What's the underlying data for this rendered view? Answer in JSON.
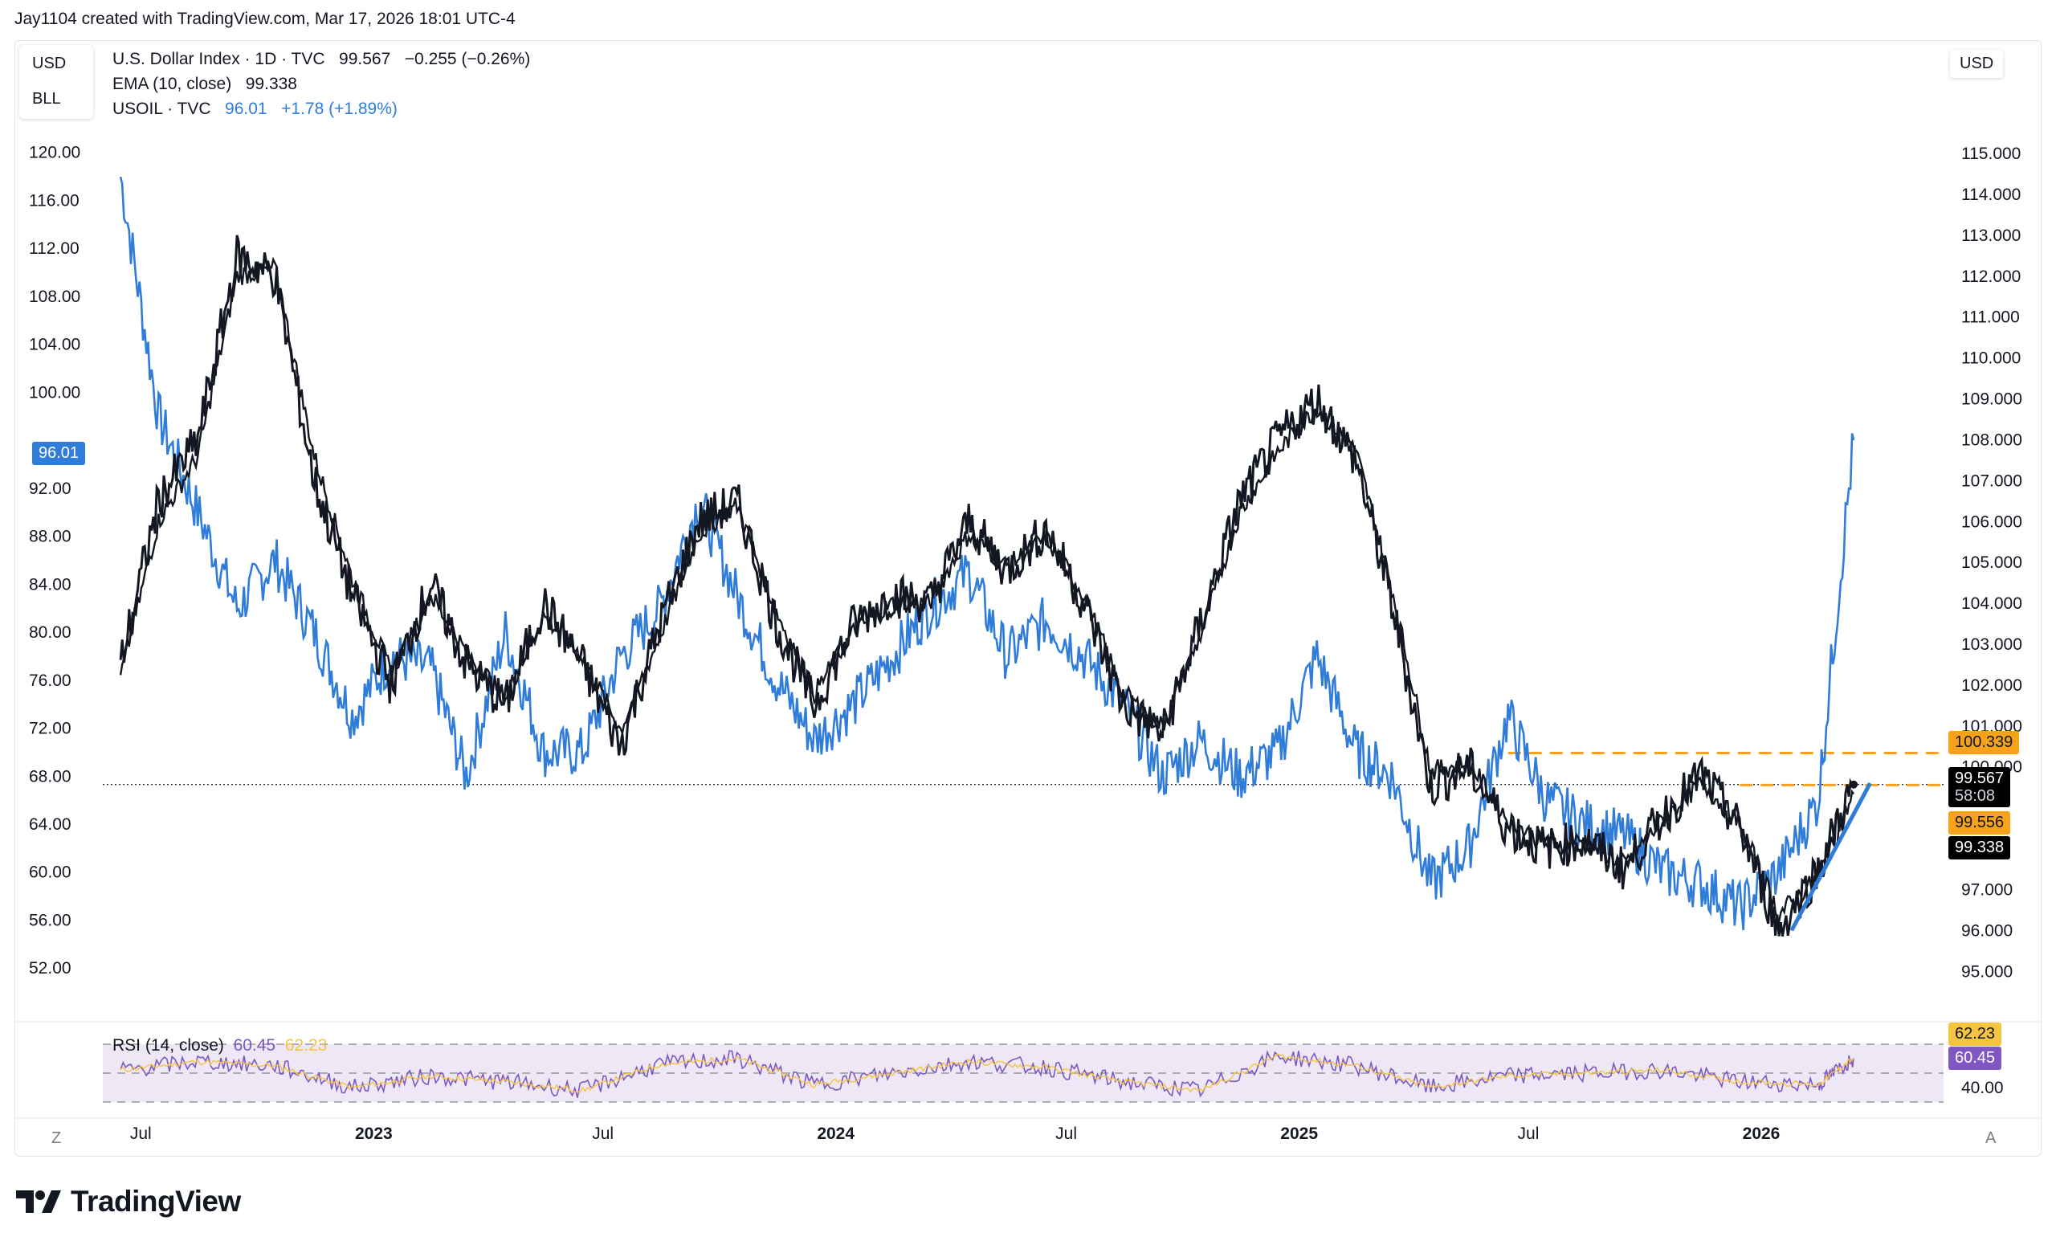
{
  "header": {
    "credit": "Jay1104 created with TradingView.com, Mar 17, 2026 18:01 UTC-4"
  },
  "left_scale": {
    "units": [
      "USD",
      "BLL"
    ],
    "ticks": [
      "120.00",
      "116.00",
      "112.00",
      "108.00",
      "104.00",
      "100.00",
      "92.00",
      "88.00",
      "84.00",
      "80.00",
      "76.00",
      "72.00",
      "68.00",
      "64.00",
      "60.00",
      "56.00",
      "52.00"
    ],
    "current_label": "96.01"
  },
  "right_scale": {
    "unit": "USD",
    "ticks": [
      "115.000",
      "114.000",
      "113.000",
      "112.000",
      "111.000",
      "110.000",
      "109.000",
      "108.000",
      "107.000",
      "106.000",
      "105.000",
      "104.000",
      "103.000",
      "102.000",
      "101.000",
      "100.000",
      "97.000",
      "96.000",
      "95.000"
    ],
    "tags": {
      "resistance": "100.339",
      "price": "99.567",
      "countdown": "58:08",
      "support": "99.556",
      "ema": "99.338"
    }
  },
  "legend": {
    "line1": {
      "name": "U.S. Dollar Index · 1D · TVC",
      "value": "99.567",
      "change": "−0.255 (−0.26%)"
    },
    "line2": {
      "name": "EMA (10, close)",
      "value": "99.338"
    },
    "line3": {
      "name": "USOIL · TVC",
      "value": "96.01",
      "change": "+1.78 (+1.89%)"
    }
  },
  "rsi": {
    "label": "RSI (14, close)",
    "value": "60.45",
    "ma_value": "62.23",
    "ticks": [
      "40.00"
    ],
    "tags": [
      "62.23",
      "60.45"
    ]
  },
  "time_axis": {
    "labels": [
      "Jul",
      "2023",
      "Jul",
      "2024",
      "Jul",
      "2025",
      "Jul",
      "2026"
    ],
    "left_button": "Z",
    "right_button": "A"
  },
  "brand": {
    "name": "TradingView"
  },
  "colors": {
    "dxy": "#131722",
    "oil": "#2f7cd9",
    "resistance": "#f7a21b",
    "rsi_line": "#7e57c2",
    "rsi_ma": "#f5c542",
    "rsi_band": "#ede7f6"
  },
  "chart_data": [
    {
      "type": "line",
      "title": "U.S. Dollar Index · 1D · TVC",
      "series": [
        {
          "name": "U.S. Dollar Index",
          "x": [
            "2022-06",
            "2022-07",
            "2022-08",
            "2022-09",
            "2022-10",
            "2022-11",
            "2022-12",
            "2023-01",
            "2023-02",
            "2023-03",
            "2023-04",
            "2023-05",
            "2023-06",
            "2023-07",
            "2023-08",
            "2023-09",
            "2023-10",
            "2023-11",
            "2023-12",
            "2024-01",
            "2024-02",
            "2024-03",
            "2024-04",
            "2024-05",
            "2024-06",
            "2024-07",
            "2024-08",
            "2024-09",
            "2024-10",
            "2024-11",
            "2024-12",
            "2025-01",
            "2025-02",
            "2025-03",
            "2025-04",
            "2025-05",
            "2025-06",
            "2025-07",
            "2025-08",
            "2025-09",
            "2025-10",
            "2025-11",
            "2025-12",
            "2026-01",
            "2026-02",
            "2026-03"
          ],
          "values": [
            102.5,
            106.5,
            108.0,
            112.5,
            112.0,
            107.0,
            104.2,
            102.0,
            104.5,
            102.5,
            101.5,
            104.0,
            102.5,
            100.5,
            103.5,
            106.0,
            106.5,
            103.5,
            101.5,
            103.5,
            104.2,
            104.0,
            106.0,
            104.8,
            105.8,
            104.0,
            101.5,
            100.8,
            103.5,
            106.5,
            108.0,
            109.0,
            107.5,
            104.0,
            99.5,
            100.0,
            98.5,
            98.0,
            98.2,
            97.5,
            98.8,
            99.8,
            98.5,
            96.0,
            97.5,
            99.567
          ]
        },
        {
          "name": "EMA (10, close)",
          "x": [
            "2022-06",
            "2022-07",
            "2022-08",
            "2022-09",
            "2022-10",
            "2022-11",
            "2022-12",
            "2023-01",
            "2023-02",
            "2023-03",
            "2023-04",
            "2023-05",
            "2023-06",
            "2023-07",
            "2023-08",
            "2023-09",
            "2023-10",
            "2023-11",
            "2023-12",
            "2024-01",
            "2024-02",
            "2024-03",
            "2024-04",
            "2024-05",
            "2024-06",
            "2024-07",
            "2024-08",
            "2024-09",
            "2024-10",
            "2024-11",
            "2024-12",
            "2025-01",
            "2025-02",
            "2025-03",
            "2025-04",
            "2025-05",
            "2025-06",
            "2025-07",
            "2025-08",
            "2025-09",
            "2025-10",
            "2025-11",
            "2025-12",
            "2026-01",
            "2026-02",
            "2026-03"
          ],
          "values": [
            102.2,
            106.0,
            107.6,
            112.0,
            112.2,
            107.6,
            104.6,
            102.3,
            104.2,
            102.8,
            101.7,
            103.7,
            102.7,
            100.9,
            103.2,
            105.7,
            106.4,
            103.8,
            101.8,
            103.3,
            104.0,
            104.0,
            105.7,
            104.9,
            105.6,
            104.2,
            101.8,
            101.0,
            103.2,
            106.2,
            107.7,
            108.8,
            107.7,
            104.4,
            99.9,
            100.1,
            98.7,
            98.1,
            98.2,
            97.6,
            98.7,
            99.6,
            98.6,
            96.4,
            97.3,
            99.338
          ]
        },
        {
          "name": "USOIL · TVC",
          "x": [
            "2022-06",
            "2022-07",
            "2022-08",
            "2022-09",
            "2022-10",
            "2022-11",
            "2022-12",
            "2023-01",
            "2023-02",
            "2023-03",
            "2023-04",
            "2023-05",
            "2023-06",
            "2023-07",
            "2023-08",
            "2023-09",
            "2023-10",
            "2023-11",
            "2023-12",
            "2024-01",
            "2024-02",
            "2024-03",
            "2024-04",
            "2024-05",
            "2024-06",
            "2024-07",
            "2024-08",
            "2024-09",
            "2024-10",
            "2024-11",
            "2024-12",
            "2025-01",
            "2025-02",
            "2025-03",
            "2025-04",
            "2025-05",
            "2025-06",
            "2025-07",
            "2025-08",
            "2025-09",
            "2025-10",
            "2025-11",
            "2025-12",
            "2026-01",
            "2026-02",
            "2026-03"
          ],
          "values": [
            118.0,
            98.0,
            90.0,
            82.0,
            86.0,
            80.0,
            73.0,
            78.0,
            77.0,
            68.0,
            80.0,
            70.0,
            70.0,
            78.0,
            82.0,
            91.0,
            83.0,
            76.0,
            71.0,
            74.0,
            78.0,
            82.0,
            85.0,
            78.0,
            81.0,
            78.0,
            74.0,
            68.0,
            71.0,
            68.0,
            70.0,
            78.0,
            70.0,
            68.0,
            59.0,
            62.0,
            73.0,
            66.0,
            64.0,
            63.0,
            60.0,
            59.0,
            57.0,
            60.0,
            66.0,
            96.01
          ]
        }
      ],
      "left_axis": {
        "label": "BLL",
        "ylim": [
          49.0,
          124.0
        ]
      },
      "right_axis": {
        "label": "USD",
        "ylim": [
          94.2,
          116.2
        ]
      },
      "annotations": [
        {
          "type": "horizontal_dashed",
          "value": 100.339,
          "color": "#f7a21b"
        },
        {
          "type": "horizontal_dashed",
          "value": 99.556,
          "color": "#f7a21b"
        },
        {
          "type": "trendline",
          "from": {
            "x": "2026-01",
            "y": 96.0
          },
          "to": {
            "x": "2026-03",
            "y": 99.6
          },
          "color": "#2f7cd9"
        }
      ],
      "x_tick_labels": [
        "Jul",
        "2023",
        "Jul",
        "2024",
        "Jul",
        "2025",
        "Jul",
        "2026"
      ],
      "grid": false
    },
    {
      "type": "line",
      "title": "RSI (14, close)",
      "series": [
        {
          "name": "RSI",
          "x": [
            "2022-06",
            "2022-08",
            "2022-10",
            "2022-12",
            "2023-02",
            "2023-04",
            "2023-06",
            "2023-08",
            "2023-10",
            "2023-12",
            "2024-02",
            "2024-04",
            "2024-06",
            "2024-08",
            "2024-10",
            "2024-12",
            "2025-02",
            "2025-04",
            "2025-06",
            "2025-08",
            "2025-10",
            "2025-12",
            "2026-02",
            "2026-03"
          ],
          "values": [
            52,
            58,
            55,
            40,
            48,
            44,
            38,
            56,
            60,
            42,
            50,
            58,
            54,
            44,
            38,
            62,
            55,
            40,
            48,
            50,
            52,
            44,
            42,
            60.45
          ]
        }
      ],
      "ylim": [
        30,
        70
      ],
      "bands": [
        30,
        70
      ]
    }
  ]
}
